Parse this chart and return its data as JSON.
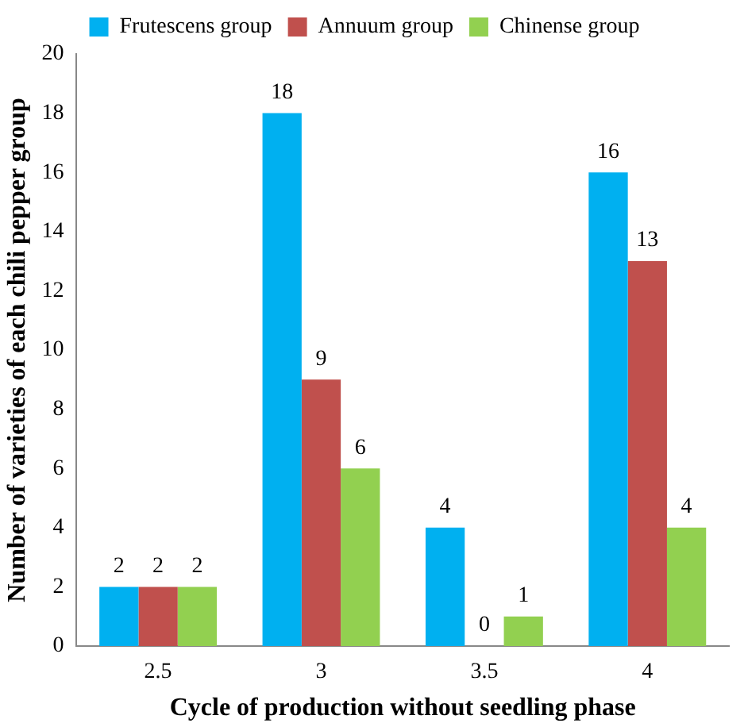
{
  "chart_data": {
    "type": "bar",
    "xlabel": "Cycle of production without seedling phase",
    "ylabel": "Number of varieties of each chili pepper group",
    "categories": [
      "2.5",
      "3",
      "3.5",
      "4"
    ],
    "series": [
      {
        "name": "Frutescens group",
        "color": "#00b0f0",
        "values": [
          2,
          18,
          4,
          16
        ]
      },
      {
        "name": "Annuum group",
        "color": "#c0504d",
        "values": [
          2,
          9,
          0,
          13
        ]
      },
      {
        "name": "Chinense group",
        "color": "#92d050",
        "values": [
          2,
          6,
          1,
          4
        ]
      }
    ],
    "ylim": [
      0,
      20
    ],
    "yticks": [
      0,
      2,
      4,
      6,
      8,
      10,
      12,
      14,
      16,
      18,
      20
    ],
    "grid": false,
    "legend": "top",
    "data_labels": true
  }
}
